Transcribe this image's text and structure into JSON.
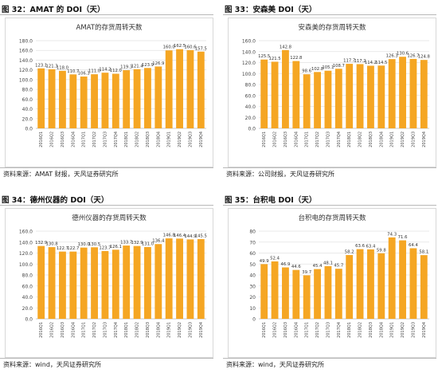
{
  "bar_color": "#F5A623",
  "grid_color": "#e2e2e2",
  "panels": [
    {
      "fig_title": "图 32：AMAT 的 DOI（天）",
      "source": "资料来源：AMAT 财报，天风证券研究所",
      "chart_data": {
        "type": "bar",
        "title": "AMAT的存货周转天数",
        "categories": [
          "2016Q1",
          "2016Q2",
          "2016Q3",
          "2016Q4",
          "2017Q1",
          "2017Q2",
          "2017Q3",
          "2017Q4",
          "2018Q1",
          "2018Q2",
          "2018Q3",
          "2018Q4",
          "2019Q1",
          "2019Q2",
          "2019Q3",
          "2019Q4"
        ],
        "values": [
          123.1,
          121.3,
          118.0,
          110.7,
          106.3,
          111.0,
          114.2,
          112.0,
          119.3,
          121.4,
          123.9,
          126.9,
          160.0,
          162.5,
          160.6,
          157.5
        ],
        "value_labels": [
          "123.1",
          "121.3",
          "118.0",
          "110.7",
          "106.3",
          "111.0",
          "114.2",
          "112.0",
          "119.3",
          "121.4",
          "123.9",
          "126.9",
          "160.0",
          "162.5",
          "160.6",
          "157.5"
        ],
        "ylim": [
          0,
          180
        ],
        "yticks": [
          "0.0",
          "20.0",
          "40.0",
          "60.0",
          "80.0",
          "100.0",
          "120.0",
          "140.0",
          "160.0",
          "180.0"
        ],
        "ytick_values": [
          0,
          20,
          40,
          60,
          80,
          100,
          120,
          140,
          160,
          180
        ],
        "grid": true
      }
    },
    {
      "fig_title": "图 33：安森美 DOI（天）",
      "source": "资料来源：公司财报，天风证券研究所",
      "chart_data": {
        "type": "bar",
        "title": "安森美的存货周转天数",
        "categories": [
          "2016Q1",
          "2016Q2",
          "2016Q3",
          "2016Q4",
          "2017Q1",
          "2017Q2",
          "2017Q3",
          "2017Q4",
          "2018Q1",
          "2018Q2",
          "2018Q3",
          "2018Q4",
          "2019Q1",
          "2019Q2",
          "2019Q3",
          "2019Q4"
        ],
        "values": [
          125.5,
          121.5,
          142.8,
          122.8,
          98.6,
          102.8,
          105.1,
          108.7,
          117.7,
          117.2,
          114.2,
          114.5,
          126.3,
          130.6,
          126.7,
          124.8
        ],
        "value_labels": [
          "125.5",
          "121.5",
          "142.8",
          "122.8",
          "98.6",
          "102.8",
          "105.1",
          "108.7",
          "117.7",
          "117.2",
          "114.2",
          "114.5",
          "126.3",
          "130.6",
          "126.7",
          "124.8"
        ],
        "ylim": [
          0,
          160
        ],
        "yticks": [
          "0.0",
          "20.0",
          "40.0",
          "60.0",
          "80.0",
          "100.0",
          "120.0",
          "140.0",
          "160.0"
        ],
        "ytick_values": [
          0,
          20,
          40,
          60,
          80,
          100,
          120,
          140,
          160
        ],
        "grid": true
      }
    },
    {
      "fig_title": "图 34：德州仪器的 DOI（天）",
      "source": "资料来源：wind，天风证券研究所",
      "chart_data": {
        "type": "bar",
        "title": "德州仪器的存货周转天数",
        "categories": [
          "2016Q1",
          "2016Q2",
          "2016Q3",
          "2016Q4",
          "2017Q1",
          "2017Q2",
          "2017Q3",
          "2017Q4",
          "2018Q1",
          "2018Q2",
          "2018Q3",
          "2018Q4",
          "2019Q1",
          "2019Q2",
          "2019Q3",
          "2019Q4"
        ],
        "values": [
          132.9,
          130.8,
          122.7,
          122.7,
          130.0,
          130.5,
          123.7,
          126.1,
          133.7,
          132.9,
          131.0,
          136.4,
          146.8,
          146.4,
          144.9,
          145.5
        ],
        "value_labels": [
          "132.9",
          "130.8",
          "122.7",
          "122.7",
          "130.0",
          "130.5",
          "123.7",
          "126.1",
          "133.7",
          "132.9",
          "131.0",
          "136.4",
          "146.8",
          "146.4",
          "144.9",
          "145.5"
        ],
        "ylim": [
          0,
          160
        ],
        "yticks": [
          "0.0",
          "20.0",
          "40.0",
          "60.0",
          "80.0",
          "100.0",
          "120.0",
          "140.0",
          "160.0"
        ],
        "ytick_values": [
          0,
          20,
          40,
          60,
          80,
          100,
          120,
          140,
          160
        ],
        "grid": true
      }
    },
    {
      "fig_title": "图 35：台积电 DOI（天）",
      "source": "资料来源：wind，天风证券研究所",
      "chart_data": {
        "type": "bar",
        "title": "台积电的存货周转天数",
        "categories": [
          "2016Q1",
          "2016Q2",
          "2016Q3",
          "2016Q4",
          "2017Q1",
          "2017Q2",
          "2017Q3",
          "2017Q4",
          "2018Q1",
          "2018Q2",
          "2018Q3",
          "2018Q4",
          "2019Q1",
          "2019Q2",
          "2019Q3",
          "2019Q4"
        ],
        "values": [
          49.9,
          52.4,
          46.9,
          44.6,
          39.7,
          45.4,
          48.1,
          45.7,
          58.2,
          63.6,
          63.4,
          59.8,
          74.3,
          71.6,
          64.4,
          58.1
        ],
        "value_labels": [
          "49.9",
          "52.4",
          "46.9",
          "44.6",
          "39.7",
          "45.4",
          "48.1",
          "45.7",
          "58.2",
          "63.6",
          "63.4",
          "59.8",
          "74.3",
          "71.6",
          "64.4",
          "58.1"
        ],
        "ylim": [
          0,
          80
        ],
        "yticks": [
          "0",
          "10",
          "20",
          "30",
          "40",
          "50",
          "60",
          "70",
          "80"
        ],
        "ytick_values": [
          0,
          10,
          20,
          30,
          40,
          50,
          60,
          70,
          80
        ],
        "grid": true
      }
    }
  ]
}
